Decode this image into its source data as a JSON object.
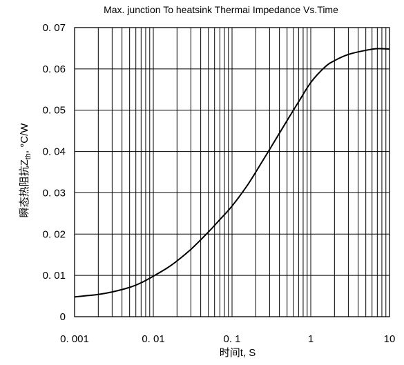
{
  "chart_data": {
    "type": "line",
    "title": "Max. junction To heatsink Thermai Impedance Vs.Time",
    "xlabel": "时间t, S",
    "ylabel": "瞬态热阻抗Zth, °C/W",
    "ylabel_main": "瞬态热阻抗Z",
    "ylabel_sub": "th",
    "ylabel_unit": ", °C/W",
    "x_scale": "log",
    "xlim": [
      0.001,
      10
    ],
    "ylim": [
      0,
      0.07
    ],
    "grid": true,
    "x_ticks": [
      {
        "value": 0.001,
        "label": "0. 001"
      },
      {
        "value": 0.01,
        "label": "0. 01"
      },
      {
        "value": 0.1,
        "label": "0. 1"
      },
      {
        "value": 1,
        "label": "1"
      },
      {
        "value": 10,
        "label": "10"
      }
    ],
    "y_ticks": [
      {
        "value": 0,
        "label": "0"
      },
      {
        "value": 0.01,
        "label": "0. 01"
      },
      {
        "value": 0.02,
        "label": "0. 02"
      },
      {
        "value": 0.03,
        "label": "0. 03"
      },
      {
        "value": 0.04,
        "label": "0. 04"
      },
      {
        "value": 0.05,
        "label": "0. 05"
      },
      {
        "value": 0.06,
        "label": "0. 06"
      },
      {
        "value": 0.07,
        "label": "0. 07"
      }
    ],
    "series": [
      {
        "x": [
          0.001,
          0.002,
          0.003,
          0.005,
          0.007,
          0.01,
          0.015,
          0.02,
          0.03,
          0.05,
          0.07,
          0.1,
          0.15,
          0.2,
          0.3,
          0.5,
          0.7,
          1,
          1.5,
          2,
          3,
          5,
          7,
          10
        ],
        "y": [
          0.0048,
          0.0054,
          0.006,
          0.0071,
          0.0082,
          0.0098,
          0.0118,
          0.0135,
          0.0163,
          0.0205,
          0.0235,
          0.0268,
          0.0313,
          0.035,
          0.0405,
          0.0475,
          0.052,
          0.0567,
          0.0604,
          0.062,
          0.0635,
          0.0645,
          0.0649,
          0.0648
        ]
      }
    ]
  }
}
